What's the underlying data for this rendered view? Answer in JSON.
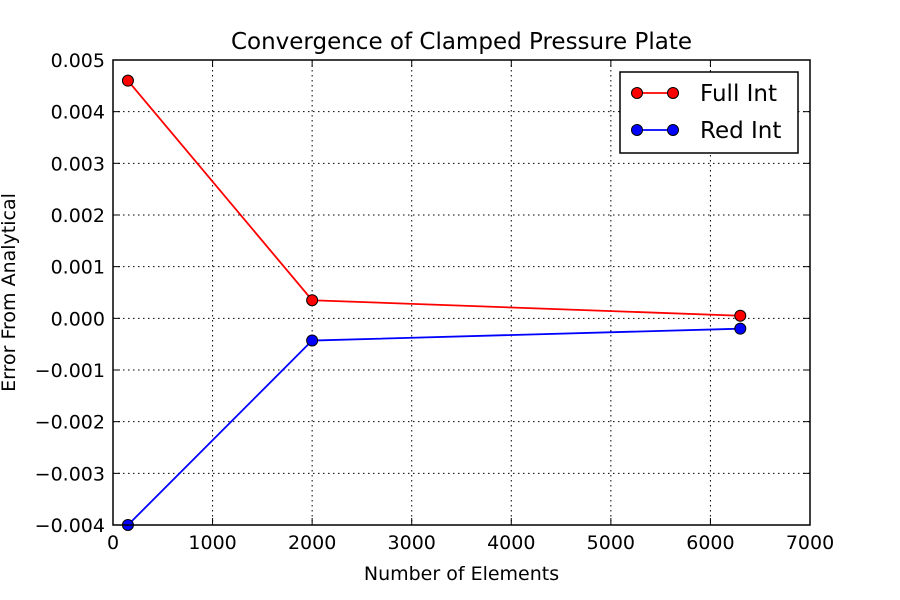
{
  "chart_data": {
    "type": "line",
    "title": "Convergence of Clamped Pressure Plate",
    "xlabel": "Number of Elements",
    "ylabel": "Error From Analytical",
    "xlim": [
      0,
      7000
    ],
    "ylim": [
      -0.004,
      0.005
    ],
    "xticks": [
      0,
      1000,
      2000,
      3000,
      4000,
      5000,
      6000,
      7000
    ],
    "xtick_labels": [
      "0",
      "1000",
      "2000",
      "3000",
      "4000",
      "5000",
      "6000",
      "7000"
    ],
    "yticks": [
      -0.004,
      -0.003,
      -0.002,
      -0.001,
      0.0,
      0.001,
      0.002,
      0.003,
      0.004,
      0.005
    ],
    "ytick_labels": [
      "−0.004",
      "−0.003",
      "−0.002",
      "−0.001",
      "0.000",
      "0.001",
      "0.002",
      "0.003",
      "0.004",
      "0.005"
    ],
    "grid": true,
    "legend_position": "top-right",
    "series": [
      {
        "name": "Full Int",
        "color": "#ff0000",
        "marker": "circle",
        "x": [
          150,
          2000,
          6300
        ],
        "y": [
          0.0046,
          0.00035,
          5e-05
        ]
      },
      {
        "name": "Red Int",
        "color": "#0000ff",
        "marker": "circle",
        "x": [
          150,
          2000,
          6300
        ],
        "y": [
          -0.004,
          -0.00043,
          -0.0002
        ]
      }
    ]
  }
}
